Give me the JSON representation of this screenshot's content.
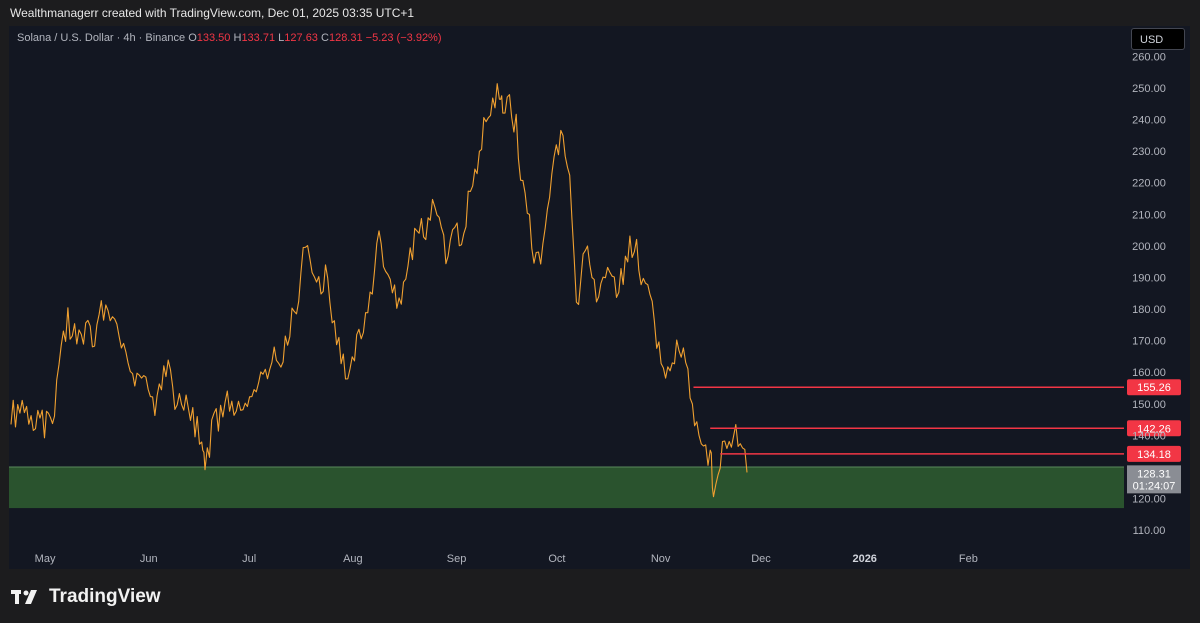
{
  "credit": "Wealthmanagerr created with TradingView.com, Dec 01, 2025 03:35 UTC+1",
  "legend": {
    "symbol": "Solana / U.S. Dollar · 4h · Binance",
    "o_label": "O",
    "o": "133.50",
    "h_label": "H",
    "h": "133.71",
    "l_label": "L",
    "l": "127.63",
    "c_label": "C",
    "c": "128.31",
    "change": "−5.23 (−3.92%)"
  },
  "currency_button": "USD",
  "brand": "TradingView",
  "colors": {
    "background": "#131722",
    "candle": "#f0a030",
    "resistance": "#f23645",
    "support_zone": "#2e5a30",
    "grid_text": "#b2b5be"
  },
  "chart_data": {
    "type": "line",
    "title": "Solana / U.S. Dollar · 4h · Binance",
    "xlabel": "",
    "ylabel": "",
    "ylim": [
      105,
      262
    ],
    "y_ticks": [
      "260.00",
      "250.00",
      "240.00",
      "230.00",
      "220.00",
      "210.00",
      "200.00",
      "190.00",
      "180.00",
      "170.00",
      "160.00",
      "150.00",
      "140.00",
      "120.00",
      "110.00"
    ],
    "x_ticks": [
      {
        "label": "May",
        "bold": false
      },
      {
        "label": "Jun",
        "bold": false
      },
      {
        "label": "Jul",
        "bold": false
      },
      {
        "label": "Aug",
        "bold": false
      },
      {
        "label": "Sep",
        "bold": false
      },
      {
        "label": "Oct",
        "bold": false
      },
      {
        "label": "Nov",
        "bold": false
      },
      {
        "label": "Dec",
        "bold": false
      },
      {
        "label": "2026",
        "bold": true
      },
      {
        "label": "Feb",
        "bold": false
      }
    ],
    "series": [
      {
        "name": "SOLUSD",
        "points": [
          [
            "Apr 25",
            148
          ],
          [
            "Apr 27",
            146
          ],
          [
            "Apr 29",
            150
          ],
          [
            "May 1",
            145
          ],
          [
            "May 3",
            147
          ],
          [
            "May 5",
            143
          ],
          [
            "May 8",
            148
          ],
          [
            "May 10",
            170
          ],
          [
            "May 12",
            176
          ],
          [
            "May 14",
            172
          ],
          [
            "May 16",
            168
          ],
          [
            "May 18",
            174
          ],
          [
            "May 20",
            166
          ],
          [
            "May 22",
            180
          ],
          [
            "May 24",
            182
          ],
          [
            "May 26",
            176
          ],
          [
            "May 28",
            170
          ],
          [
            "May 30",
            160
          ],
          [
            "Jun 1",
            155
          ],
          [
            "Jun 3",
            160
          ],
          [
            "Jun 5",
            152
          ],
          [
            "Jun 7",
            150
          ],
          [
            "Jun 9",
            158
          ],
          [
            "Jun 11",
            162
          ],
          [
            "Jun 13",
            150
          ],
          [
            "Jun 15",
            153
          ],
          [
            "Jun 17",
            148
          ],
          [
            "Jun 19",
            144
          ],
          [
            "Jun 21",
            138
          ],
          [
            "Jun 22",
            128
          ],
          [
            "Jun 24",
            142
          ],
          [
            "Jun 26",
            145
          ],
          [
            "Jun 28",
            150
          ],
          [
            "Jun 30",
            152
          ],
          [
            "Jul 2",
            148
          ],
          [
            "Jul 4",
            152
          ],
          [
            "Jul 6",
            150
          ],
          [
            "Jul 8",
            155
          ],
          [
            "Jul 10",
            160
          ],
          [
            "Jul 12",
            165
          ],
          [
            "Jul 14",
            162
          ],
          [
            "Jul 16",
            168
          ],
          [
            "Jul 18",
            176
          ],
          [
            "Jul 20",
            185
          ],
          [
            "Jul 22",
            204
          ],
          [
            "Jul 24",
            196
          ],
          [
            "Jul 26",
            186
          ],
          [
            "Jul 28",
            190
          ],
          [
            "Jul 30",
            178
          ],
          [
            "Aug 1",
            170
          ],
          [
            "Aug 3",
            160
          ],
          [
            "Aug 5",
            165
          ],
          [
            "Aug 7",
            172
          ],
          [
            "Aug 9",
            176
          ],
          [
            "Aug 11",
            186
          ],
          [
            "Aug 13",
            204
          ],
          [
            "Aug 15",
            192
          ],
          [
            "Aug 17",
            186
          ],
          [
            "Aug 19",
            182
          ],
          [
            "Aug 21",
            190
          ],
          [
            "Aug 23",
            200
          ],
          [
            "Aug 25",
            206
          ],
          [
            "Aug 27",
            204
          ],
          [
            "Aug 29",
            212
          ],
          [
            "Aug 31",
            205
          ],
          [
            "Sep 2",
            198
          ],
          [
            "Sep 4",
            206
          ],
          [
            "Sep 6",
            202
          ],
          [
            "Sep 8",
            210
          ],
          [
            "Sep 10",
            220
          ],
          [
            "Sep 12",
            230
          ],
          [
            "Sep 14",
            242
          ],
          [
            "Sep 16",
            246
          ],
          [
            "Sep 18",
            250
          ],
          [
            "Sep 19",
            240
          ],
          [
            "Sep 21",
            244
          ],
          [
            "Sep 23",
            238
          ],
          [
            "Sep 25",
            218
          ],
          [
            "Sep 27",
            206
          ],
          [
            "Sep 29",
            194
          ],
          [
            "Oct 1",
            200
          ],
          [
            "Oct 3",
            215
          ],
          [
            "Oct 5",
            230
          ],
          [
            "Oct 7",
            234
          ],
          [
            "Oct 9",
            222
          ],
          [
            "Oct 11",
            180
          ],
          [
            "Oct 13",
            196
          ],
          [
            "Oct 15",
            198
          ],
          [
            "Oct 17",
            184
          ],
          [
            "Oct 19",
            186
          ],
          [
            "Oct 21",
            192
          ],
          [
            "Oct 23",
            188
          ],
          [
            "Oct 25",
            192
          ],
          [
            "Oct 27",
            200
          ],
          [
            "Oct 29",
            198
          ],
          [
            "Oct 31",
            186
          ],
          [
            "Nov 2",
            186
          ],
          [
            "Nov 4",
            168
          ],
          [
            "Nov 6",
            160
          ],
          [
            "Nov 8",
            162
          ],
          [
            "Nov 10",
            168
          ],
          [
            "Nov 12",
            164
          ],
          [
            "Nov 14",
            156
          ],
          [
            "Nov 16",
            140
          ],
          [
            "Nov 18",
            136
          ],
          [
            "Nov 20",
            134
          ],
          [
            "Nov 21",
            124
          ],
          [
            "Nov 23",
            132
          ],
          [
            "Nov 25",
            138
          ],
          [
            "Nov 27",
            142
          ],
          [
            "Nov 29",
            138
          ],
          [
            "Dec 1",
            128.31
          ]
        ]
      }
    ],
    "price_lines": [
      {
        "value": 155.26,
        "label": "155.26",
        "start": "Nov 15"
      },
      {
        "value": 142.26,
        "label": "142.26",
        "start": "Nov 20"
      },
      {
        "value": 134.18,
        "label": "134.18",
        "start": "Nov 23"
      }
    ],
    "support_zone": {
      "from": 117,
      "to": 130
    },
    "last_price": {
      "value": 128.31,
      "label": "128.31",
      "countdown": "01:24:07"
    }
  }
}
